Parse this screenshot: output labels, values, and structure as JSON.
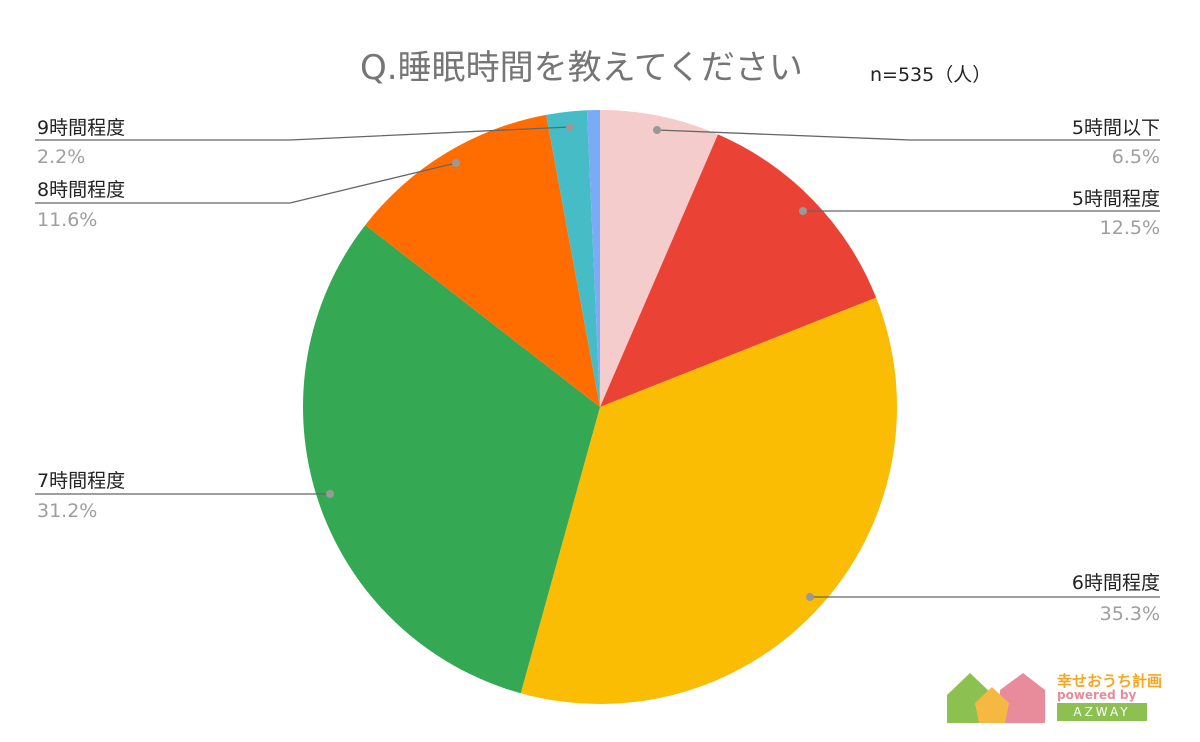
{
  "chart_data": {
    "type": "pie",
    "title": "Q.睡眠時間を教えてください",
    "subtitle": "n=535（人）",
    "start": "top",
    "direction": "clockwise",
    "slices": [
      {
        "label": "5時間以下",
        "value": 6.5,
        "display": "6.5%",
        "color": "#f4cccc"
      },
      {
        "label": "5時間程度",
        "value": 12.5,
        "display": "12.5%",
        "color": "#ea4335"
      },
      {
        "label": "6時間程度",
        "value": 35.3,
        "display": "35.3%",
        "color": "#fbbc04"
      },
      {
        "label": "7時間程度",
        "value": 31.2,
        "display": "31.2%",
        "color": "#34a853"
      },
      {
        "label": "8時間程度",
        "value": 11.6,
        "display": "11.6%",
        "color": "#ff6d01"
      },
      {
        "label": "9時間程度",
        "value": 2.2,
        "display": "2.2%",
        "color": "#46bdc6"
      },
      {
        "label": "",
        "value": 0.7,
        "display": "",
        "color": "#7baaf7"
      }
    ]
  },
  "logo": {
    "name": "幸せおうち計画",
    "powered": "powered by",
    "brand": "AZWAY"
  }
}
